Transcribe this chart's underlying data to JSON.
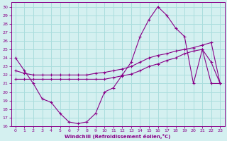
{
  "background_color": "#d4f0f0",
  "grid_color": "#aadddd",
  "line_color": "#880088",
  "xlabel": "Windchill (Refroidissement éolien,°C)",
  "xlim": [
    -0.5,
    23.5
  ],
  "ylim": [
    16,
    30.5
  ],
  "xticks": [
    0,
    1,
    2,
    3,
    4,
    5,
    6,
    7,
    8,
    9,
    10,
    11,
    12,
    13,
    14,
    15,
    16,
    17,
    18,
    19,
    20,
    21,
    22,
    23
  ],
  "yticks": [
    16,
    17,
    18,
    19,
    20,
    21,
    22,
    23,
    24,
    25,
    26,
    27,
    28,
    29,
    30
  ],
  "line1_x": [
    0,
    1,
    2,
    3,
    4,
    5,
    6,
    7,
    8,
    9,
    10,
    11,
    12,
    13,
    14,
    15,
    16,
    17,
    18,
    19,
    20,
    21,
    22,
    23
  ],
  "line1_y": [
    24.0,
    22.5,
    21.0,
    19.2,
    18.8,
    17.5,
    16.5,
    16.3,
    16.5,
    17.5,
    20.0,
    20.5,
    22.0,
    23.5,
    26.5,
    28.5,
    30.0,
    29.0,
    27.5,
    26.5,
    21.0,
    25.0,
    23.5,
    21.0
  ],
  "line2_x": [
    0,
    1,
    2,
    3,
    4,
    5,
    6,
    7,
    8,
    9,
    10,
    11,
    12,
    13,
    14,
    15,
    16,
    17,
    18,
    19,
    20,
    21,
    22,
    23
  ],
  "line2_y": [
    22.5,
    22.2,
    22.0,
    22.0,
    22.0,
    22.0,
    22.0,
    22.0,
    22.0,
    22.2,
    22.3,
    22.5,
    22.7,
    23.0,
    23.5,
    24.0,
    24.3,
    24.5,
    24.8,
    25.0,
    25.2,
    25.5,
    25.8,
    21.0
  ],
  "line3_x": [
    0,
    1,
    2,
    3,
    4,
    5,
    6,
    7,
    8,
    9,
    10,
    11,
    12,
    13,
    14,
    15,
    16,
    17,
    18,
    19,
    20,
    21,
    22,
    23
  ],
  "line3_y": [
    21.5,
    21.5,
    21.5,
    21.5,
    21.5,
    21.5,
    21.5,
    21.5,
    21.5,
    21.5,
    21.5,
    21.7,
    21.9,
    22.1,
    22.5,
    23.0,
    23.3,
    23.7,
    24.0,
    24.5,
    24.8,
    25.0,
    21.0,
    21.0
  ]
}
